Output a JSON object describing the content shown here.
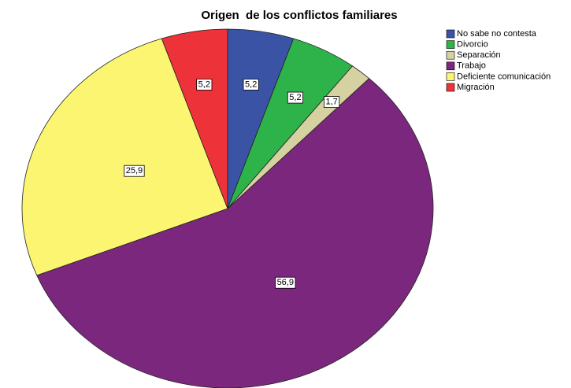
{
  "chart_data": {
    "type": "pie",
    "title": "Origen  de los conflictos familiares",
    "categories": [
      "No sabe no contesta",
      "Divorcio",
      "Separación",
      "Trabajo",
      "Deficiente comunicación",
      "Migración"
    ],
    "values": [
      5.2,
      5.2,
      1.7,
      56.9,
      25.9,
      5.2
    ],
    "value_labels": [
      "5,2",
      "5,2",
      "1,7",
      "56,9",
      "25,9",
      "5,2"
    ],
    "colors": [
      "#3a53a4",
      "#2db34a",
      "#d6d1a0",
      "#7b277d",
      "#fbf571",
      "#ee3239"
    ],
    "legend": "top-right"
  }
}
